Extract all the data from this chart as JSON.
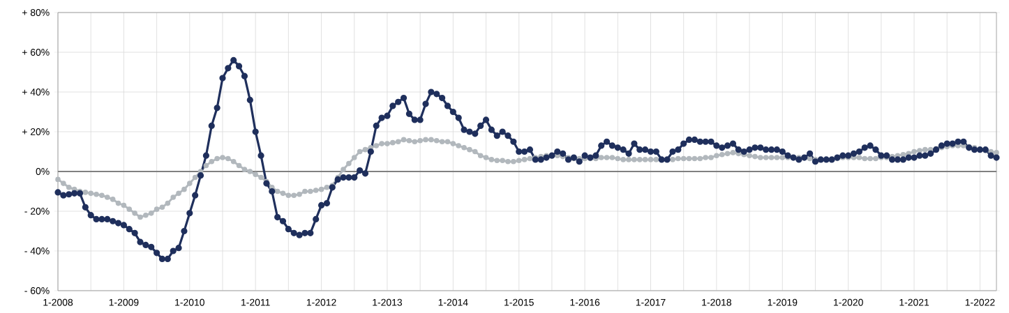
{
  "chart_data": {
    "type": "line",
    "x": [
      "2008-01",
      "2008-02",
      "2008-03",
      "2008-04",
      "2008-05",
      "2008-06",
      "2008-07",
      "2008-08",
      "2008-09",
      "2008-10",
      "2008-11",
      "2008-12",
      "2009-01",
      "2009-02",
      "2009-03",
      "2009-04",
      "2009-05",
      "2009-06",
      "2009-07",
      "2009-08",
      "2009-09",
      "2009-10",
      "2009-11",
      "2009-12",
      "2010-01",
      "2010-02",
      "2010-03",
      "2010-04",
      "2010-05",
      "2010-06",
      "2010-07",
      "2010-08",
      "2010-09",
      "2010-10",
      "2010-11",
      "2010-12",
      "2011-01",
      "2011-02",
      "2011-03",
      "2011-04",
      "2011-05",
      "2011-06",
      "2011-07",
      "2011-08",
      "2011-09",
      "2011-10",
      "2011-11",
      "2011-12",
      "2012-01",
      "2012-02",
      "2012-03",
      "2012-04",
      "2012-05",
      "2012-06",
      "2012-07",
      "2012-08",
      "2012-09",
      "2012-10",
      "2012-11",
      "2012-12",
      "2013-01",
      "2013-02",
      "2013-03",
      "2013-04",
      "2013-05",
      "2013-06",
      "2013-07",
      "2013-08",
      "2013-09",
      "2013-10",
      "2013-11",
      "2013-12",
      "2014-01",
      "2014-02",
      "2014-03",
      "2014-04",
      "2014-05",
      "2014-06",
      "2014-07",
      "2014-08",
      "2014-09",
      "2014-10",
      "2014-11",
      "2014-12",
      "2015-01",
      "2015-02",
      "2015-03",
      "2015-04",
      "2015-05",
      "2015-06",
      "2015-07",
      "2015-08",
      "2015-09",
      "2015-10",
      "2015-11",
      "2015-12",
      "2016-01",
      "2016-02",
      "2016-03",
      "2016-04",
      "2016-05",
      "2016-06",
      "2016-07",
      "2016-08",
      "2016-09",
      "2016-10",
      "2016-11",
      "2016-12",
      "2017-01",
      "2017-02",
      "2017-03",
      "2017-04",
      "2017-05",
      "2017-06",
      "2017-07",
      "2017-08",
      "2017-09",
      "2017-10",
      "2017-11",
      "2017-12",
      "2018-01",
      "2018-02",
      "2018-03",
      "2018-04",
      "2018-05",
      "2018-06",
      "2018-07",
      "2018-08",
      "2018-09",
      "2018-10",
      "2018-11",
      "2018-12",
      "2019-01",
      "2019-02",
      "2019-03",
      "2019-04",
      "2019-05",
      "2019-06",
      "2019-07",
      "2019-08",
      "2019-09",
      "2019-10",
      "2019-11",
      "2019-12",
      "2020-01",
      "2020-02",
      "2020-03",
      "2020-04",
      "2020-05",
      "2020-06",
      "2020-07",
      "2020-08",
      "2020-09",
      "2020-10",
      "2020-11",
      "2020-12",
      "2021-01",
      "2021-02",
      "2021-03",
      "2021-04",
      "2021-05",
      "2021-06",
      "2021-07",
      "2021-08",
      "2021-09",
      "2021-10",
      "2021-11",
      "2021-12",
      "2022-01",
      "2022-02",
      "2022-03",
      "2022-04"
    ],
    "series": [
      {
        "color": "#b2b8bd",
        "values": [
          -4,
          -6,
          -8,
          -9,
          -10,
          -10.5,
          -11,
          -11.5,
          -12,
          -13,
          -14,
          -16,
          -17,
          -19,
          -21,
          -23,
          -22,
          -21,
          -19,
          -18,
          -16,
          -13,
          -11,
          -9,
          -6,
          -3,
          0,
          3,
          5,
          6.5,
          7,
          6.5,
          5,
          3,
          1,
          0,
          -1.5,
          -3,
          -5,
          -8,
          -10,
          -11,
          -12,
          -12,
          -11.5,
          -10,
          -10,
          -9.5,
          -9,
          -8,
          -7,
          -3,
          1,
          4,
          7,
          10,
          11,
          12,
          13,
          14,
          14,
          14.5,
          15,
          16,
          15.5,
          15,
          15.5,
          16,
          16,
          15.5,
          15,
          15,
          14,
          13,
          12,
          11,
          10,
          8,
          7,
          6,
          5.5,
          5.5,
          5,
          5,
          5.5,
          6,
          6.5,
          7,
          7.5,
          8,
          8,
          8,
          7.5,
          7,
          6.5,
          6.5,
          6.5,
          6.5,
          6.5,
          7,
          7,
          7,
          6.5,
          6,
          6,
          6,
          6,
          6,
          6,
          6,
          6,
          6,
          6,
          6.5,
          6.5,
          6.5,
          6.5,
          6.5,
          7,
          7,
          8,
          8.5,
          9,
          9.5,
          9,
          8.5,
          8,
          7.5,
          7,
          7,
          7,
          7,
          7,
          7,
          7,
          7,
          7,
          6.5,
          6,
          6,
          6,
          6,
          6.5,
          7,
          7,
          7,
          7,
          6.5,
          6.5,
          6.5,
          7,
          7,
          7.5,
          8,
          8.5,
          9,
          10,
          10.5,
          11,
          11,
          11.5,
          12,
          12.5,
          13,
          13,
          13,
          12.5,
          12,
          11,
          10.5,
          10,
          9.5
        ]
      },
      {
        "color": "#1f2f5c",
        "values": [
          -10.5,
          -12,
          -11.5,
          -11,
          -11,
          -18,
          -22,
          -24,
          -24,
          -24,
          -25,
          -26,
          -27,
          -29,
          -31,
          -35.5,
          -37,
          -38,
          -41,
          -44,
          -44,
          -40,
          -38.5,
          -30,
          -21,
          -12,
          -2,
          8,
          23,
          32,
          47,
          52,
          56,
          53,
          48,
          36,
          20,
          8,
          -6,
          -10,
          -23,
          -25,
          -29,
          -31,
          -32,
          -31,
          -31,
          -24,
          -17,
          -16,
          -8,
          -4,
          -3,
          -3,
          -3,
          0.5,
          -1,
          10,
          23,
          27,
          28,
          33,
          35,
          37,
          29,
          26,
          26,
          34,
          40,
          39,
          37,
          33,
          30,
          27,
          21,
          20,
          19,
          23,
          26,
          21,
          18,
          20,
          18,
          15,
          10,
          10,
          11,
          6,
          6,
          7,
          8,
          10,
          9,
          6,
          7,
          5,
          8,
          7,
          8,
          13,
          15,
          13,
          12,
          11,
          9,
          14,
          11,
          11,
          10,
          10,
          6,
          6,
          10,
          11,
          14,
          16,
          16,
          15,
          15,
          15,
          13,
          12,
          13,
          14,
          11,
          10,
          11,
          12,
          12,
          11,
          11,
          11,
          10,
          8,
          7,
          6,
          7,
          9,
          5,
          6,
          6,
          6,
          7,
          8,
          8,
          9,
          10,
          12,
          13,
          11,
          8,
          8,
          6,
          6,
          6,
          7,
          7,
          8,
          8,
          9,
          11,
          13,
          14,
          14,
          15,
          15,
          12,
          11,
          11,
          11,
          8,
          7
        ]
      }
    ],
    "xlim": [
      "2008-01",
      "2022-04"
    ],
    "xticks": [
      {
        "value": "2008-01",
        "label": "1-2008"
      },
      {
        "value": "2008-07",
        "label": null
      },
      {
        "value": "2009-01",
        "label": "1-2009"
      },
      {
        "value": "2009-07",
        "label": null
      },
      {
        "value": "2010-01",
        "label": "1-2010"
      },
      {
        "value": "2010-07",
        "label": null
      },
      {
        "value": "2011-01",
        "label": "1-2011"
      },
      {
        "value": "2011-07",
        "label": null
      },
      {
        "value": "2012-01",
        "label": "1-2012"
      },
      {
        "value": "2012-07",
        "label": null
      },
      {
        "value": "2013-01",
        "label": "1-2013"
      },
      {
        "value": "2013-07",
        "label": null
      },
      {
        "value": "2014-01",
        "label": "1-2014"
      },
      {
        "value": "2014-07",
        "label": null
      },
      {
        "value": "2015-01",
        "label": "1-2015"
      },
      {
        "value": "2015-07",
        "label": null
      },
      {
        "value": "2016-01",
        "label": "1-2016"
      },
      {
        "value": "2016-07",
        "label": null
      },
      {
        "value": "2017-01",
        "label": "1-2017"
      },
      {
        "value": "2017-07",
        "label": null
      },
      {
        "value": "2018-01",
        "label": "1-2018"
      },
      {
        "value": "2018-07",
        "label": null
      },
      {
        "value": "2019-01",
        "label": "1-2019"
      },
      {
        "value": "2019-07",
        "label": null
      },
      {
        "value": "2020-01",
        "label": "1-2020"
      },
      {
        "value": "2020-07",
        "label": null
      },
      {
        "value": "2021-01",
        "label": "1-2021"
      },
      {
        "value": "2021-07",
        "label": null
      },
      {
        "value": "2022-01",
        "label": "1-2022"
      }
    ],
    "ylim": [
      -60,
      80
    ],
    "yticks": [
      {
        "value": -60,
        "label": "- 60%"
      },
      {
        "value": -40,
        "label": "- 40%"
      },
      {
        "value": -20,
        "label": "- 20%"
      },
      {
        "value": 0,
        "label": "0%"
      },
      {
        "value": 20,
        "label": "+ 20%"
      },
      {
        "value": 40,
        "label": "+ 40%"
      },
      {
        "value": 60,
        "label": "+ 60%"
      },
      {
        "value": 80,
        "label": "+ 80%"
      }
    ],
    "ref_lines": [
      {
        "axis": "y",
        "value": 0,
        "color": "#808080"
      }
    ],
    "grid": true,
    "marker": "circle",
    "line_style": "solid"
  }
}
